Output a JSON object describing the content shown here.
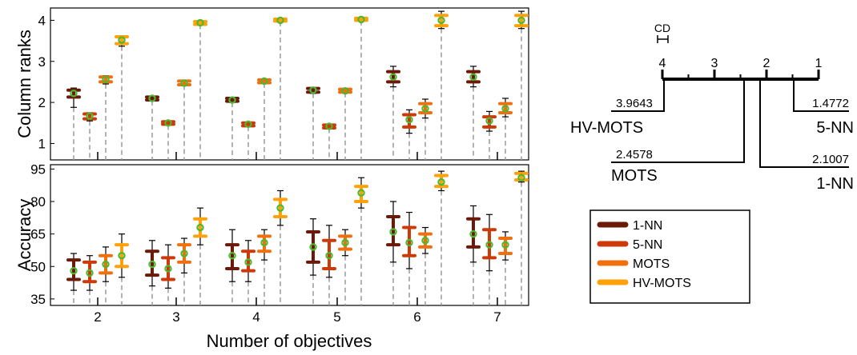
{
  "xlabel": "Number of objectives",
  "colors": {
    "nn1": "#6b1a0a",
    "nn5": "#cc3a0a",
    "mots": "#f07010",
    "hvmots": "#ffa10a",
    "median": "#4bb82f",
    "whisker": "#000000",
    "dash": "#9a9a9a"
  },
  "chart_data": [
    {
      "type": "box",
      "ylabel": "Column ranks",
      "ylim": [
        0.6,
        4.3
      ],
      "yticks": [
        1,
        2,
        3,
        4
      ],
      "categories": [
        "2",
        "3",
        "4",
        "5",
        "6",
        "7"
      ],
      "series": [
        {
          "name": "1-NN",
          "color": "#6b1a0a",
          "q1": [
            2.13,
            2.06,
            2.03,
            2.25,
            2.5,
            2.5
          ],
          "median": [
            2.22,
            2.1,
            2.06,
            2.3,
            2.62,
            2.62
          ],
          "q3": [
            2.3,
            2.13,
            2.1,
            2.34,
            2.75,
            2.75
          ],
          "min": [
            1.88,
            2.04,
            2.0,
            2.22,
            2.38,
            2.38
          ],
          "max": [
            2.35,
            2.15,
            2.12,
            2.36,
            2.88,
            2.88
          ]
        },
        {
          "name": "5-NN",
          "color": "#cc3a0a",
          "q1": [
            1.6,
            1.47,
            1.43,
            1.38,
            1.4,
            1.4
          ],
          "median": [
            1.67,
            1.5,
            1.47,
            1.42,
            1.58,
            1.55
          ],
          "q3": [
            1.72,
            1.53,
            1.5,
            1.45,
            1.7,
            1.65
          ],
          "min": [
            1.55,
            1.45,
            1.42,
            1.37,
            1.25,
            1.3
          ],
          "max": [
            1.75,
            1.55,
            1.52,
            1.47,
            1.82,
            1.78
          ]
        },
        {
          "name": "MOTS",
          "color": "#f07010",
          "q1": [
            2.5,
            2.43,
            2.48,
            2.25,
            1.75,
            1.75
          ],
          "median": [
            2.56,
            2.47,
            2.52,
            2.28,
            1.85,
            1.85
          ],
          "q3": [
            2.62,
            2.52,
            2.55,
            2.32,
            1.97,
            1.97
          ],
          "min": [
            2.45,
            2.42,
            2.47,
            2.24,
            1.62,
            1.65
          ],
          "max": [
            2.65,
            2.53,
            2.57,
            2.33,
            2.08,
            2.1
          ]
        },
        {
          "name": "HV-MOTS",
          "color": "#ffa10a",
          "q1": [
            3.43,
            3.9,
            3.98,
            4.0,
            3.87,
            3.87
          ],
          "median": [
            3.52,
            3.94,
            4.0,
            4.02,
            4.0,
            4.0
          ],
          "q3": [
            3.6,
            3.97,
            4.03,
            4.05,
            4.12,
            4.12
          ],
          "min": [
            3.37,
            3.9,
            3.97,
            3.99,
            3.8,
            3.8
          ],
          "max": [
            3.62,
            3.98,
            4.03,
            4.06,
            4.22,
            4.22
          ]
        }
      ]
    },
    {
      "type": "box",
      "ylabel": "Accuracy",
      "ylim": [
        32,
        97
      ],
      "yticks": [
        35,
        50,
        65,
        80,
        95
      ],
      "categories": [
        "2",
        "3",
        "4",
        "5",
        "6",
        "7"
      ],
      "series": [
        {
          "name": "1-NN",
          "color": "#6b1a0a",
          "q1": [
            44,
            46,
            49,
            52,
            60,
            59
          ],
          "median": [
            48,
            51,
            55,
            59,
            66,
            65
          ],
          "q3": [
            53,
            57,
            60,
            66,
            73,
            72
          ],
          "min": [
            39,
            41,
            43,
            46,
            52,
            52
          ],
          "max": [
            56,
            62,
            67,
            72,
            80,
            78
          ]
        },
        {
          "name": "5-NN",
          "color": "#cc3a0a",
          "q1": [
            43,
            44,
            48,
            49,
            55,
            54
          ],
          "median": [
            47,
            49,
            52,
            55,
            61,
            60
          ],
          "q3": [
            52,
            54,
            57,
            62,
            68,
            67
          ],
          "min": [
            39,
            40,
            43,
            45,
            49,
            48
          ],
          "max": [
            55,
            60,
            62,
            69,
            75,
            74
          ]
        },
        {
          "name": "MOTS",
          "color": "#f07010",
          "q1": [
            47,
            52,
            57,
            58,
            59,
            56
          ],
          "median": [
            51,
            56,
            61,
            61,
            62,
            60
          ],
          "q3": [
            55,
            60,
            64,
            64,
            65,
            63
          ],
          "min": [
            43,
            47,
            53,
            55,
            56,
            53
          ],
          "max": [
            59,
            63,
            67,
            67,
            68,
            66
          ]
        },
        {
          "name": "HV-MOTS",
          "color": "#ffa10a",
          "q1": [
            50,
            64,
            73,
            80,
            87,
            90
          ],
          "median": [
            55,
            68,
            77,
            84,
            89,
            91
          ],
          "q3": [
            60,
            72,
            81,
            87,
            92,
            93
          ],
          "min": [
            45,
            60,
            69,
            77,
            85,
            89
          ],
          "max": [
            65,
            77,
            85,
            91,
            94,
            94
          ]
        }
      ]
    },
    {
      "type": "critical-difference",
      "axis_ticks": [
        "4",
        "3",
        "2",
        "1"
      ],
      "cd_label": "CD",
      "left": [
        {
          "method": "HV-MOTS",
          "rank": "3.9643"
        },
        {
          "method": "MOTS",
          "rank": "2.4578"
        }
      ],
      "right": [
        {
          "method": "5-NN",
          "rank": "1.4772"
        },
        {
          "method": "1-NN",
          "rank": "2.1007"
        }
      ]
    }
  ],
  "legend": {
    "items": [
      {
        "label": "1-NN",
        "color": "#6b1a0a"
      },
      {
        "label": "5-NN",
        "color": "#cc3a0a"
      },
      {
        "label": "MOTS",
        "color": "#f07010"
      },
      {
        "label": "HV-MOTS",
        "color": "#ffa10a"
      }
    ]
  }
}
